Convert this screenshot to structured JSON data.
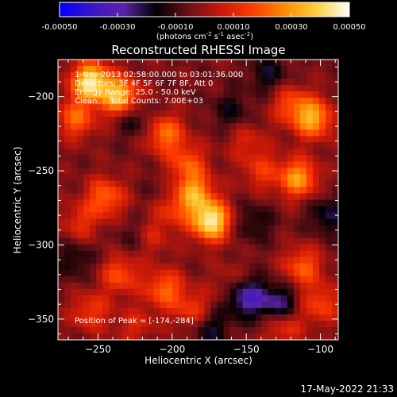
{
  "chart_data": {
    "type": "heatmap",
    "title": "Reconstructed RHESSI Image",
    "xlabel": "Heliocentric X (arcsec)",
    "ylabel": "Heliocentric Y (arcsec)",
    "xlim": [
      -277,
      -88
    ],
    "ylim": [
      -364,
      -175
    ],
    "x_ticks": [
      -250,
      -200,
      -150,
      -100
    ],
    "y_ticks": [
      -200,
      -250,
      -300,
      -350
    ],
    "colorbar": {
      "range": [
        -0.0005,
        0.0005
      ],
      "ticks": [
        -0.0005,
        -0.0003,
        -0.0001,
        0.0001,
        0.0003,
        0.0005
      ],
      "tick_labels": [
        "-0.00050",
        "-0.00030",
        "-0.00010",
        "0.00010",
        "0.00030",
        "0.00050"
      ],
      "unit_parts": [
        "(photons cm",
        "-2",
        " s",
        "-1",
        " asec",
        "-2",
        ")"
      ],
      "colormap": [
        "#0000ff",
        "#3a14c8",
        "#5a24a8",
        "#000000",
        "#6a1018",
        "#c81808",
        "#ff3c00",
        "#ff8c00",
        "#ffd040",
        "#ffffff"
      ]
    },
    "annotations": [
      "1-Nov-2013 02:58:00.000 to 03:01:36.000",
      "Detectors: 3F 4F 5F 6F 7F 8F, Att 0",
      "Energy Range: 25.0 - 50.0 keV",
      "Clean     Total Counts: 7.00E+03"
    ],
    "peak_label": "Position of Peak = [-174,-284]",
    "peak": [
      -174,
      -284
    ],
    "bright_regions": [
      {
        "x": -255,
        "y": -190,
        "v": 0.00048
      },
      {
        "x": -235,
        "y": -200,
        "v": 0.0004
      },
      {
        "x": -265,
        "y": -215,
        "v": 0.00025
      },
      {
        "x": -205,
        "y": -225,
        "v": 0.00028
      },
      {
        "x": -190,
        "y": -245,
        "v": 0.00022
      },
      {
        "x": -174,
        "y": -284,
        "v": 0.0005
      },
      {
        "x": -185,
        "y": -265,
        "v": 0.00032
      },
      {
        "x": -200,
        "y": -275,
        "v": 0.00018
      },
      {
        "x": -245,
        "y": -268,
        "v": 0.00026
      },
      {
        "x": -262,
        "y": -285,
        "v": 0.00015
      },
      {
        "x": -140,
        "y": -250,
        "v": 0.00016
      },
      {
        "x": -115,
        "y": -255,
        "v": 0.00034
      },
      {
        "x": -105,
        "y": -215,
        "v": 0.00036
      },
      {
        "x": -120,
        "y": -205,
        "v": 0.0002
      },
      {
        "x": -150,
        "y": -230,
        "v": 0.00012
      },
      {
        "x": -235,
        "y": -320,
        "v": 0.00022
      },
      {
        "x": -205,
        "y": -330,
        "v": 0.00026
      },
      {
        "x": -185,
        "y": -345,
        "v": 0.0002
      },
      {
        "x": -255,
        "y": -345,
        "v": 0.00018
      },
      {
        "x": -225,
        "y": -355,
        "v": 0.00012
      },
      {
        "x": -160,
        "y": -325,
        "v": 0.0001
      },
      {
        "x": -112,
        "y": -315,
        "v": 0.00024
      },
      {
        "x": -100,
        "y": -340,
        "v": 0.0002
      },
      {
        "x": -125,
        "y": -355,
        "v": 0.00018
      },
      {
        "x": -215,
        "y": -295,
        "v": 0.00014
      }
    ],
    "dark_regions": [
      {
        "x": -150,
        "y": -335,
        "v": -0.0003
      },
      {
        "x": -128,
        "y": -340,
        "v": -0.00024
      },
      {
        "x": -175,
        "y": -355,
        "v": -0.00018
      },
      {
        "x": -225,
        "y": -215,
        "v": -0.00014
      },
      {
        "x": -135,
        "y": -185,
        "v": -0.00014
      },
      {
        "x": -160,
        "y": -210,
        "v": -0.00012
      },
      {
        "x": -95,
        "y": -280,
        "v": -0.00016
      },
      {
        "x": -145,
        "y": -285,
        "v": -0.00012
      },
      {
        "x": -225,
        "y": -295,
        "v": -0.0001
      },
      {
        "x": -265,
        "y": -310,
        "v": -0.00012
      },
      {
        "x": -205,
        "y": -265,
        "v": -8e-05
      }
    ]
  },
  "footer": {
    "timestamp": "17-May-2022 21:33"
  }
}
